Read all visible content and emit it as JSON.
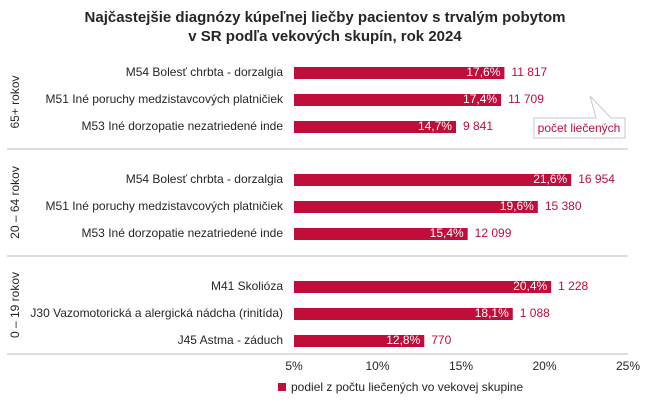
{
  "chart_data": {
    "type": "bar",
    "orientation": "horizontal",
    "title": [
      "Najčastejšie diagnózy kúpeľnej liečby pacientov s trvalým pobytom",
      "v SR podľa vekových skupín, rok 2024"
    ],
    "x_ticks": [
      "5%",
      "10%",
      "15%",
      "20%",
      "25%"
    ],
    "xlim": [
      5,
      25
    ],
    "grid": "none",
    "legend": {
      "label": "podiel z počtu liečených vo vekovej skupine",
      "position": "bottom"
    },
    "callout": "počet liečených",
    "groups": [
      {
        "label": "65+ rokov",
        "items": [
          {
            "category": "M54 Bolesť chrbta - dorzalgia",
            "value": 17.6,
            "value_label": "17,6%",
            "count_label": "11 817"
          },
          {
            "category": "M51 Iné poruchy medzistavcových platničiek",
            "value": 17.4,
            "value_label": "17,4%",
            "count_label": "11 709"
          },
          {
            "category": "M53 Iné dorzopatie nezatriedené inde",
            "value": 14.7,
            "value_label": "14,7%",
            "count_label": "9 841"
          }
        ]
      },
      {
        "label": "20 – 64 rokov",
        "items": [
          {
            "category": "M54 Bolesť chrbta - dorzalgia",
            "value": 21.6,
            "value_label": "21,6%",
            "count_label": "16 954"
          },
          {
            "category": "M51 Iné poruchy medzistavcových platničiek",
            "value": 19.6,
            "value_label": "19,6%",
            "count_label": "15 380"
          },
          {
            "category": "M53 Iné dorzopatie nezatriedené inde",
            "value": 15.4,
            "value_label": "15,4%",
            "count_label": "12 099"
          }
        ]
      },
      {
        "label": "0 – 19 rokov",
        "items": [
          {
            "category": "M41 Skolióza",
            "value": 20.4,
            "value_label": "20,4%",
            "count_label": "1 228"
          },
          {
            "category": "J30 Vazomotorická a alergická nádcha (rinitída)",
            "value": 18.1,
            "value_label": "18,1%",
            "count_label": "1 088"
          },
          {
            "category": "J45 Astma - záduch",
            "value": 12.8,
            "value_label": "12,8%",
            "count_label": "770"
          }
        ]
      }
    ],
    "colors": {
      "bar": "#c00d3a",
      "count_text": "#c00d3a",
      "divider": "#bfbfbf",
      "callout_border": "#c9c9c9"
    }
  }
}
